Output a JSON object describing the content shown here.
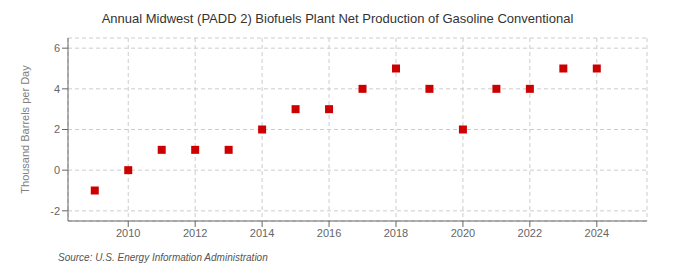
{
  "chart_data": {
    "type": "scatter",
    "title": "Annual Midwest (PADD 2) Biofuels Plant Net Production of Gasoline Conventional",
    "ylabel": "Thousand Barrels per Day",
    "annotations": [
      "Source: U.S. Energy Information Administration"
    ],
    "x": [
      2009,
      2010,
      2011,
      2012,
      2013,
      2014,
      2015,
      2016,
      2017,
      2018,
      2019,
      2020,
      2021,
      2022,
      2023,
      2024
    ],
    "values": [
      -1,
      0,
      1,
      1,
      1,
      2,
      3,
      3,
      4,
      5,
      4,
      2,
      4,
      4,
      5,
      5
    ],
    "color": "#cc0000",
    "marker": "square",
    "xlim": [
      2008.2,
      2025.5
    ],
    "ylim": [
      -2.5,
      6.5
    ],
    "xticks": [
      2010,
      2012,
      2014,
      2016,
      2018,
      2020,
      2022,
      2024
    ],
    "yticks": [
      -2,
      0,
      2,
      4,
      6
    ],
    "grid": true
  }
}
